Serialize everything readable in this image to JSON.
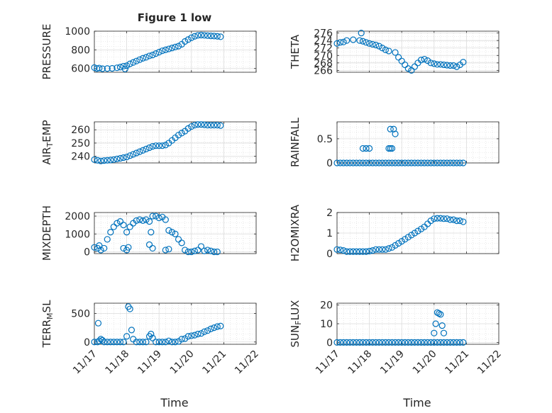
{
  "figure": {
    "title": "Figure 1 low",
    "xlabel": "Time",
    "x_ticks": [
      "11/17",
      "11/18",
      "11/19",
      "11/20",
      "11/21",
      "11/22"
    ],
    "marker_color": "#0072BD"
  },
  "chart_data": [
    {
      "type": "scatter",
      "ylabel": "PRESSURE",
      "ylabel_sub": "",
      "ylabel_tail": "",
      "ylim": [
        560,
        1000
      ],
      "yticks": [
        600,
        800,
        1000
      ],
      "xlim": [
        0,
        5
      ],
      "grid": true,
      "x": [
        0.0,
        0.08,
        0.15,
        0.25,
        0.4,
        0.55,
        0.7,
        0.8,
        0.9,
        1.0,
        1.1,
        1.2,
        1.3,
        1.4,
        1.5,
        1.6,
        1.7,
        1.8,
        1.9,
        2.0,
        2.1,
        2.2,
        2.3,
        2.4,
        2.5,
        2.6,
        2.7,
        2.8,
        2.9,
        3.0,
        3.1,
        3.2,
        3.3,
        3.4,
        3.5,
        3.6,
        3.7,
        3.8,
        3.9,
        0.95
      ],
      "y": [
        610,
        600,
        605,
        598,
        600,
        602,
        608,
        615,
        625,
        630,
        650,
        665,
        680,
        695,
        710,
        720,
        735,
        745,
        760,
        775,
        790,
        800,
        810,
        820,
        830,
        840,
        860,
        890,
        910,
        930,
        945,
        955,
        958,
        955,
        952,
        950,
        948,
        945,
        940,
        595
      ]
    },
    {
      "type": "scatter",
      "ylabel": "THETA",
      "ylabel_sub": "",
      "ylabel_tail": "",
      "ylim": [
        265.5,
        276.5
      ],
      "yticks": [
        266,
        268,
        270,
        272,
        274,
        276
      ],
      "xlim": [
        0,
        5
      ],
      "grid": true,
      "x": [
        0.0,
        0.1,
        0.2,
        0.3,
        0.5,
        0.7,
        0.8,
        0.9,
        1.0,
        1.1,
        1.2,
        1.3,
        1.4,
        1.5,
        1.6,
        1.8,
        1.9,
        2.0,
        2.1,
        2.2,
        2.3,
        2.4,
        2.5,
        2.6,
        2.7,
        2.8,
        2.9,
        3.0,
        3.1,
        3.2,
        3.3,
        3.4,
        3.5,
        3.6,
        3.7,
        3.8,
        3.9,
        0.75
      ],
      "y": [
        273.2,
        273.5,
        273.6,
        274.0,
        274.2,
        274.0,
        273.8,
        273.5,
        273.2,
        273.0,
        272.8,
        272.5,
        272.0,
        271.5,
        271.2,
        270.8,
        269.5,
        268.5,
        267.5,
        266.5,
        266.0,
        267.0,
        268.0,
        268.8,
        269.0,
        268.6,
        268.0,
        267.8,
        267.6,
        267.6,
        267.5,
        267.4,
        267.3,
        267.3,
        267.0,
        267.5,
        268.2,
        276.0
      ]
    },
    {
      "type": "scatter",
      "ylabel": "AIR",
      "ylabel_sub": "T",
      "ylabel_tail": "EMP",
      "ylim": [
        235,
        266
      ],
      "yticks": [
        240,
        250,
        260
      ],
      "xlim": [
        0,
        5
      ],
      "grid": true,
      "x": [
        0.0,
        0.1,
        0.2,
        0.3,
        0.4,
        0.5,
        0.6,
        0.7,
        0.8,
        0.9,
        1.0,
        1.1,
        1.2,
        1.3,
        1.4,
        1.5,
        1.6,
        1.7,
        1.8,
        1.9,
        2.0,
        2.1,
        2.2,
        2.3,
        2.4,
        2.5,
        2.6,
        2.7,
        2.8,
        2.9,
        3.0,
        3.1,
        3.2,
        3.3,
        3.4,
        3.5,
        3.6,
        3.7,
        3.8,
        3.9
      ],
      "y": [
        237.5,
        237.0,
        236.5,
        236.8,
        237.0,
        237.2,
        237.5,
        238.0,
        238.5,
        239.0,
        239.5,
        240.5,
        241.5,
        242.5,
        243.5,
        244.5,
        245.5,
        246.5,
        247.5,
        248.0,
        248.0,
        248.0,
        248.5,
        250.0,
        252.0,
        254.0,
        256.0,
        257.5,
        259.0,
        261.0,
        262.5,
        263.5,
        264.0,
        264.0,
        263.8,
        263.5,
        263.5,
        263.5,
        263.5,
        263.2
      ]
    },
    {
      "type": "scatter",
      "ylabel": "RAINFALL",
      "ylabel_sub": "",
      "ylabel_tail": "",
      "ylim": [
        0,
        0.85
      ],
      "yticks": [
        0,
        0.5
      ],
      "xlim": [
        0,
        5
      ],
      "grid": true,
      "x": [
        0.0,
        0.1,
        0.2,
        0.3,
        0.4,
        0.5,
        0.6,
        0.7,
        0.8,
        0.9,
        1.0,
        1.1,
        1.2,
        1.3,
        1.4,
        1.5,
        1.6,
        1.7,
        1.8,
        1.9,
        2.0,
        2.1,
        2.2,
        2.3,
        2.4,
        2.5,
        2.6,
        2.7,
        2.8,
        2.9,
        3.0,
        3.1,
        3.2,
        3.3,
        3.4,
        3.5,
        3.6,
        3.7,
        3.8,
        3.9,
        0.8,
        0.9,
        1.0,
        1.6,
        1.65,
        1.7,
        1.65,
        1.75,
        1.8
      ],
      "y": [
        0,
        0,
        0,
        0,
        0,
        0,
        0,
        0,
        0,
        0,
        0,
        0,
        0,
        0,
        0,
        0,
        0,
        0,
        0,
        0,
        0,
        0,
        0,
        0,
        0,
        0,
        0,
        0,
        0,
        0,
        0,
        0,
        0,
        0,
        0,
        0,
        0,
        0,
        0,
        0,
        0.3,
        0.3,
        0.3,
        0.3,
        0.3,
        0.3,
        0.7,
        0.7,
        0.6
      ]
    },
    {
      "type": "scatter",
      "ylabel": "MIXDEPTH",
      "ylabel_sub": "",
      "ylabel_tail": "",
      "ylim": [
        -100,
        2200
      ],
      "yticks": [
        0,
        1000,
        2000
      ],
      "xlim": [
        0,
        5
      ],
      "grid": true,
      "x": [
        0.0,
        0.1,
        0.15,
        0.2,
        0.3,
        0.4,
        0.5,
        0.6,
        0.7,
        0.8,
        0.9,
        1.0,
        1.1,
        1.2,
        1.3,
        1.4,
        1.5,
        1.6,
        1.7,
        1.8,
        1.9,
        2.0,
        2.1,
        2.2,
        2.3,
        2.4,
        2.5,
        2.6,
        2.7,
        2.8,
        2.9,
        3.0,
        3.1,
        3.2,
        3.3,
        3.4,
        3.5,
        3.6,
        3.7,
        3.8,
        0.9,
        1.0,
        1.05,
        1.7,
        1.8,
        1.75,
        2.2,
        2.3
      ],
      "y": [
        250,
        200,
        350,
        100,
        200,
        700,
        1100,
        1400,
        1600,
        1700,
        1500,
        1100,
        1400,
        1600,
        1750,
        1800,
        1750,
        1800,
        1700,
        2000,
        2000,
        1900,
        1950,
        1800,
        1200,
        1100,
        1000,
        700,
        500,
        100,
        0,
        0,
        50,
        100,
        300,
        50,
        100,
        50,
        0,
        0,
        200,
        100,
        250,
        400,
        200,
        1100,
        100,
        150
      ]
    },
    {
      "type": "scatter",
      "ylabel": "H2OMIXRA",
      "ylabel_sub": "",
      "ylabel_tail": "",
      "ylim": [
        0,
        2
      ],
      "yticks": [
        0,
        1,
        2
      ],
      "xlim": [
        0,
        5
      ],
      "grid": true,
      "x": [
        0.0,
        0.1,
        0.2,
        0.3,
        0.4,
        0.5,
        0.6,
        0.7,
        0.8,
        0.9,
        1.0,
        1.1,
        1.2,
        1.3,
        1.4,
        1.5,
        1.6,
        1.7,
        1.8,
        1.9,
        2.0,
        2.1,
        2.2,
        2.3,
        2.4,
        2.5,
        2.6,
        2.7,
        2.8,
        2.9,
        3.0,
        3.1,
        3.2,
        3.3,
        3.4,
        3.5,
        3.6,
        3.7,
        3.8,
        3.9
      ],
      "y": [
        0.2,
        0.18,
        0.15,
        0.1,
        0.1,
        0.1,
        0.1,
        0.1,
        0.1,
        0.1,
        0.12,
        0.15,
        0.2,
        0.2,
        0.2,
        0.2,
        0.25,
        0.3,
        0.4,
        0.5,
        0.6,
        0.7,
        0.8,
        0.9,
        1.0,
        1.1,
        1.2,
        1.3,
        1.45,
        1.6,
        1.7,
        1.72,
        1.72,
        1.7,
        1.7,
        1.65,
        1.65,
        1.6,
        1.6,
        1.55
      ]
    },
    {
      "type": "scatter",
      "ylabel": "TERR",
      "ylabel_sub": "M",
      "ylabel_tail": "SL",
      "ylim": [
        -40,
        680
      ],
      "yticks": [
        0,
        500
      ],
      "xlim": [
        0,
        5
      ],
      "grid": true,
      "x": [
        0.0,
        0.1,
        0.12,
        0.15,
        0.2,
        0.25,
        0.3,
        0.4,
        0.5,
        0.6,
        0.7,
        0.8,
        0.9,
        1.0,
        1.05,
        1.1,
        1.15,
        1.2,
        1.3,
        1.4,
        1.5,
        1.6,
        1.7,
        1.75,
        1.8,
        1.9,
        2.0,
        2.1,
        2.2,
        2.3,
        2.4,
        2.5,
        2.6,
        2.7,
        2.8,
        2.9,
        3.0,
        3.1,
        3.2,
        3.3,
        3.4,
        3.5,
        3.6,
        3.7,
        3.8,
        3.9
      ],
      "y": [
        0,
        0,
        330,
        20,
        50,
        30,
        0,
        0,
        0,
        0,
        0,
        0,
        0,
        100,
        620,
        580,
        210,
        50,
        0,
        0,
        0,
        0,
        100,
        140,
        70,
        0,
        0,
        0,
        0,
        20,
        0,
        0,
        10,
        50,
        60,
        100,
        110,
        120,
        140,
        150,
        180,
        200,
        230,
        250,
        270,
        280
      ]
    },
    {
      "type": "scatter",
      "ylabel": "SUN",
      "ylabel_sub": "F",
      "ylabel_tail": "LUX",
      "ylim": [
        -1,
        21
      ],
      "yticks": [
        0,
        10,
        20
      ],
      "xlim": [
        0,
        5
      ],
      "grid": true,
      "x": [
        0.0,
        0.1,
        0.2,
        0.3,
        0.4,
        0.5,
        0.6,
        0.7,
        0.8,
        0.9,
        1.0,
        1.1,
        1.2,
        1.3,
        1.4,
        1.5,
        1.6,
        1.7,
        1.8,
        1.9,
        2.0,
        2.1,
        2.2,
        2.3,
        2.4,
        2.5,
        2.6,
        2.7,
        2.8,
        2.9,
        3.0,
        3.1,
        3.2,
        3.3,
        3.4,
        3.5,
        3.6,
        3.7,
        3.8,
        3.9,
        3.0,
        3.05,
        3.1,
        3.15,
        3.2,
        3.25,
        3.3
      ],
      "y": [
        0,
        0,
        0,
        0,
        0,
        0,
        0,
        0,
        0,
        0,
        0,
        0,
        0,
        0,
        0,
        0,
        0,
        0,
        0,
        0,
        0,
        0,
        0,
        0,
        0,
        0,
        0,
        0,
        0,
        0,
        0,
        0,
        0,
        0,
        0,
        0,
        0,
        0,
        0,
        0,
        5,
        10,
        16,
        15.5,
        15,
        9,
        5
      ]
    }
  ]
}
